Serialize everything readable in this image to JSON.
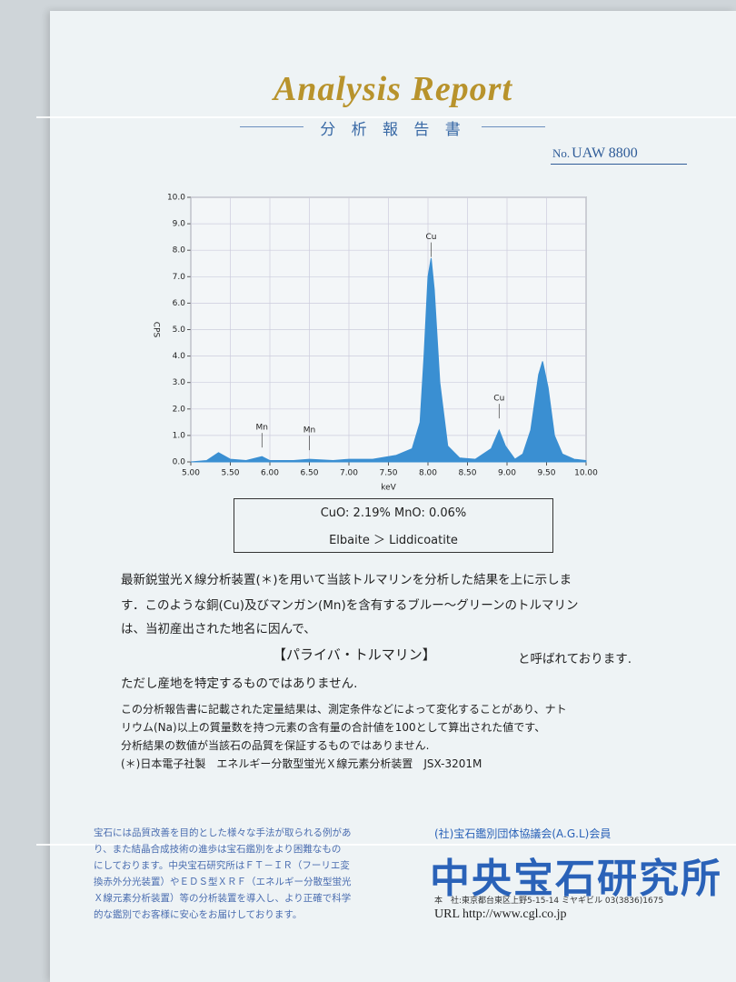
{
  "header": {
    "title": "Analysis Report",
    "subtitle": "分 析 報 告 書",
    "number_prefix": "No.",
    "number": "UAW 8800"
  },
  "chart_data": {
    "type": "area",
    "xlabel": "keV",
    "ylabel": "CPS",
    "x": [
      5.0,
      5.2,
      5.35,
      5.5,
      5.7,
      5.9,
      6.0,
      6.3,
      6.5,
      6.8,
      7.0,
      7.3,
      7.6,
      7.8,
      7.9,
      7.95,
      8.0,
      8.04,
      8.08,
      8.15,
      8.25,
      8.4,
      8.6,
      8.8,
      8.9,
      8.98,
      9.1,
      9.2,
      9.3,
      9.4,
      9.45,
      9.52,
      9.6,
      9.7,
      9.85,
      10.0
    ],
    "values": [
      0.0,
      0.05,
      0.35,
      0.1,
      0.05,
      0.2,
      0.05,
      0.05,
      0.1,
      0.05,
      0.1,
      0.1,
      0.25,
      0.5,
      1.5,
      4.0,
      7.0,
      7.7,
      6.5,
      3.0,
      0.6,
      0.15,
      0.1,
      0.5,
      1.2,
      0.6,
      0.1,
      0.3,
      1.2,
      3.3,
      3.8,
      2.8,
      1.0,
      0.3,
      0.1,
      0.05
    ],
    "color": "#3a8fd2",
    "xlim": [
      5.0,
      10.0
    ],
    "xticks": [
      {
        "value": 5,
        "label": "5.00"
      },
      {
        "value": 5.5,
        "label": "5.50"
      },
      {
        "value": 6,
        "label": "6.00"
      },
      {
        "value": 6.5,
        "label": "6.50"
      },
      {
        "value": 7,
        "label": "7.00"
      },
      {
        "value": 7.5,
        "label": "7.50"
      },
      {
        "value": 8,
        "label": "8.00"
      },
      {
        "value": 8.5,
        "label": "8.50"
      },
      {
        "value": 9,
        "label": "9.00"
      },
      {
        "value": 9.5,
        "label": "9.50"
      },
      {
        "value": 10,
        "label": "10.00"
      }
    ],
    "ylim": [
      0,
      10
    ],
    "yticks": [
      {
        "value": 0,
        "label": "0.0"
      },
      {
        "value": 1,
        "label": "1.0"
      },
      {
        "value": 2,
        "label": "2.0"
      },
      {
        "value": 3,
        "label": "3.0"
      },
      {
        "value": 4,
        "label": "4.0"
      },
      {
        "value": 5,
        "label": "5.0"
      },
      {
        "value": 6,
        "label": "6.0"
      },
      {
        "value": 7,
        "label": "7.0"
      },
      {
        "value": 8,
        "label": "8.0"
      },
      {
        "value": 9,
        "label": "9.0"
      },
      {
        "value": 10,
        "label": "10.0"
      }
    ],
    "grid": true,
    "annotations": [
      {
        "text": "Mn",
        "x": 5.9,
        "y": 1.3
      },
      {
        "text": "Mn",
        "x": 6.5,
        "y": 1.2
      },
      {
        "text": "Cu",
        "x": 8.04,
        "y": 8.5
      },
      {
        "text": "Cu",
        "x": 8.9,
        "y": 2.4
      }
    ]
  },
  "result": {
    "composition": "CuO: 2.19%   MnO: 0.06%",
    "species": "Elbaite ＞ Liddicoatite"
  },
  "body": {
    "paragraph_lines": [
      "最新鋭蛍光Ｘ線分析装置(＊)を用いて当該トルマリンを分析した結果を上に示しま",
      "す．このような銅(Cu)及びマンガン(Mn)を含有するブルー～グリーンのトルマリン",
      "は、当初産出された地名に因んで、"
    ],
    "name": "【パライバ・トルマリン】",
    "name_suffix": "と呼ばれております.",
    "closing": "ただし産地を特定するものではありません.",
    "notes": [
      "この分析報告書に記載された定量結果は、測定条件などによって変化することがあり、ナト",
      "リウム(Na)以上の質量数を持つ元素の含有量の合計値を100として算出された値です、",
      "分析結果の数値が当該石の品質を保証するものではありません."
    ],
    "instrument_note": "(＊)日本電子社製　エネルギー分散型蛍光Ｘ線元素分析装置　JSX-3201M"
  },
  "footer": {
    "disclaimer": [
      "宝石には品質改善を目的とした様々な手法が取られる例があ",
      "り、また結晶合成技術の進歩は宝石鑑別をより困難なもの",
      "にしております。中央宝石研究所はＦＴ－ＩＲ（フーリエ変",
      "換赤外分光装置）やＥＤＳ型ＸＲＦ（エネルギー分散型蛍光",
      "Ｘ線元素分析装置）等の分析装置を導入し、より正確で科学",
      "的な鑑別でお客様に安心をお届けしております。"
    ],
    "affiliation": "(社)宝石鑑別団体協議会(A.G.L)会員",
    "logo": "中央宝石研究所",
    "address": "本　社:東京都台東区上野5-15-14 ミヤギビル 03(3836)1675",
    "url": "URL  http://www.cgl.co.jp"
  }
}
